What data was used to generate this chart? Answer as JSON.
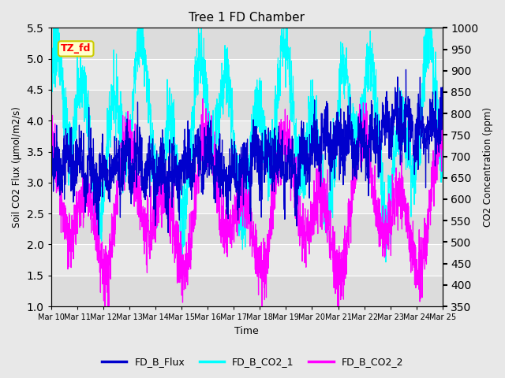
{
  "title": "Tree 1 FD Chamber",
  "ylabel_left": "Soil CO2 Flux (μmol/m2/s)",
  "ylabel_right": "CO2 Concentration (ppm)",
  "xlabel": "Time",
  "ylim_left": [
    1.0,
    5.5
  ],
  "ylim_right": [
    350,
    1000
  ],
  "annotation_text": "TZ_fd",
  "annotation_bbox_facecolor": "#ffffcc",
  "annotation_bbox_edgecolor": "#cccc00",
  "flux_color": "#0000CD",
  "co2_1_color": "#00FFFF",
  "co2_2_color": "#FF00FF",
  "legend_labels": [
    "FD_B_Flux",
    "FD_B_CO2_1",
    "FD_B_CO2_2"
  ],
  "x_tick_labels": [
    "Mar 10",
    "Mar 11",
    "Mar 12",
    "Mar 13",
    "Mar 14",
    "Mar 15",
    "Mar 16",
    "Mar 17",
    "Mar 18",
    "Mar 19",
    "Mar 20",
    "Mar 21",
    "Mar 22",
    "Mar 23",
    "Mar 24",
    "Mar 25"
  ],
  "background_color": "#e8e8e8",
  "plot_bg_color": "#dcdcdc",
  "band_colors": [
    "#dcdcdc",
    "#e8e8e8"
  ],
  "grid_yticks": [
    1.0,
    1.5,
    2.0,
    2.5,
    3.0,
    3.5,
    4.0,
    4.5,
    5.0,
    5.5
  ],
  "seed": 42
}
